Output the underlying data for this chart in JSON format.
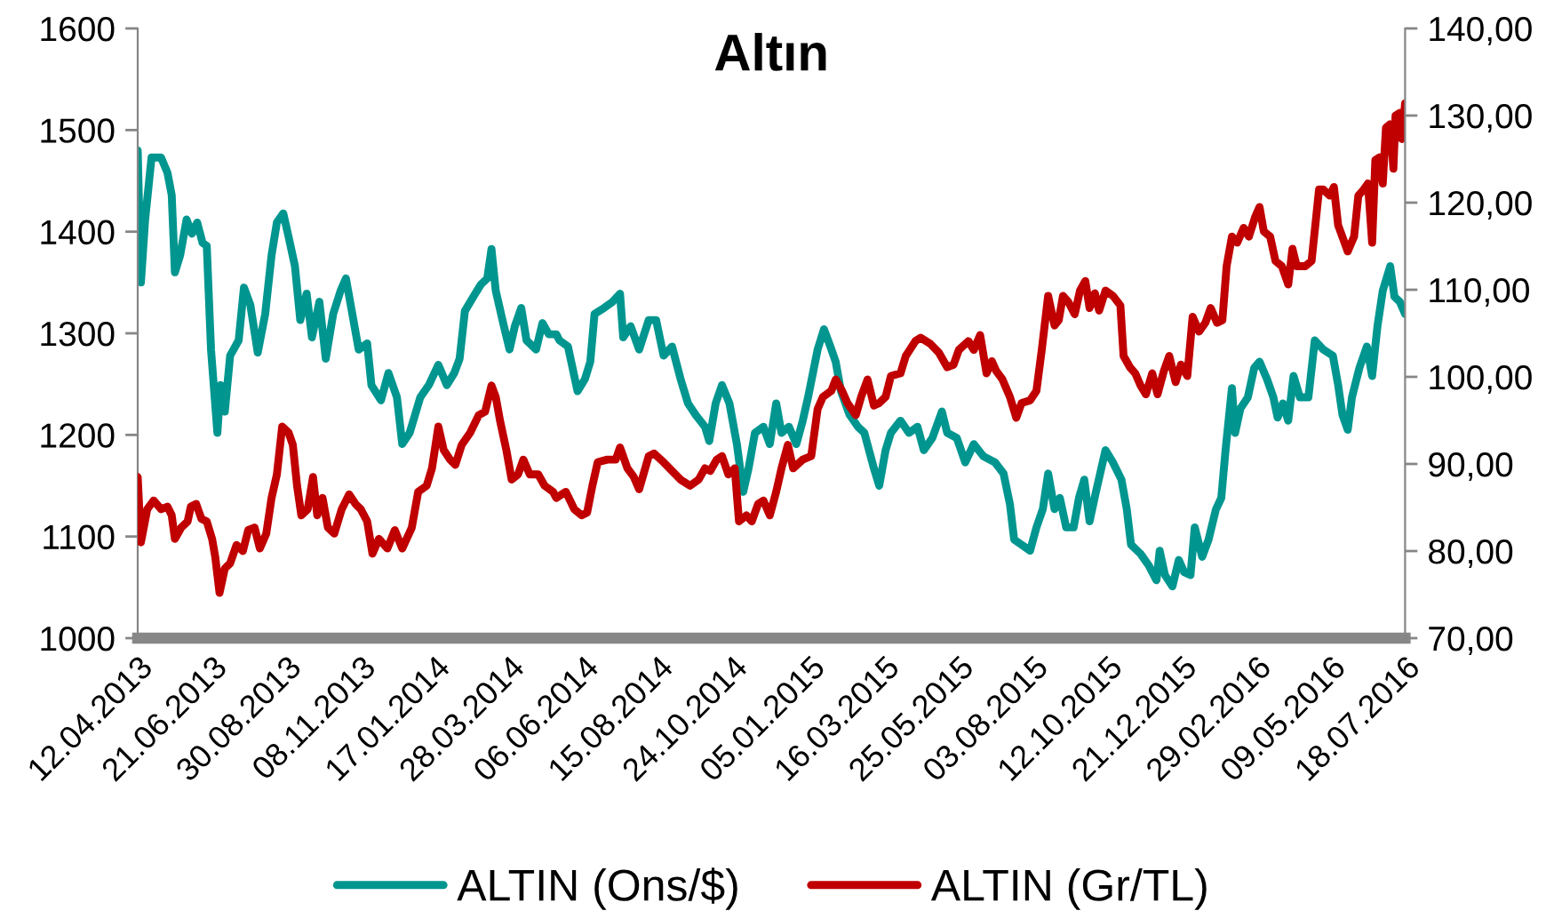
{
  "chart_data": {
    "type": "line",
    "title": "Altın",
    "grid": false,
    "legend": "bottom",
    "xlim": [
      "2013-04-12",
      "2016-07-18"
    ],
    "xticks": [
      {
        "value": "2013-04-12",
        "label": "12.04.2013"
      },
      {
        "value": "2013-06-21",
        "label": "21.06.2013"
      },
      {
        "value": "2013-08-30",
        "label": "30.08.2013"
      },
      {
        "value": "2013-11-08",
        "label": "08.11.2013"
      },
      {
        "value": "2014-01-17",
        "label": "17.01.2014"
      },
      {
        "value": "2014-03-28",
        "label": "28.03.2014"
      },
      {
        "value": "2014-06-06",
        "label": "06.06.2014"
      },
      {
        "value": "2014-08-15",
        "label": "15.08.2014"
      },
      {
        "value": "2014-10-24",
        "label": "24.10.2014"
      },
      {
        "value": "2015-01-05",
        "label": "05.01.2015"
      },
      {
        "value": "2015-03-16",
        "label": "16.03.2015"
      },
      {
        "value": "2015-05-25",
        "label": "25.05.2015"
      },
      {
        "value": "2015-08-03",
        "label": "03.08.2015"
      },
      {
        "value": "2015-10-12",
        "label": "12.10.2015"
      },
      {
        "value": "2015-12-21",
        "label": "21.12.2015"
      },
      {
        "value": "2016-02-29",
        "label": "29.02.2016"
      },
      {
        "value": "2016-05-09",
        "label": "09.05.2016"
      },
      {
        "value": "2016-07-18",
        "label": "18.07.2016"
      }
    ],
    "ylim": [
      1000,
      1600
    ],
    "yticks": [
      1000,
      1100,
      1200,
      1300,
      1400,
      1500,
      1600
    ],
    "y2lim": [
      70,
      140
    ],
    "y2ticks": [
      {
        "value": 70,
        "label": "70,00"
      },
      {
        "value": 80,
        "label": "80,00"
      },
      {
        "value": 90,
        "label": "90,00"
      },
      {
        "value": 100,
        "label": "100,00"
      },
      {
        "value": 110,
        "label": "110,00"
      },
      {
        "value": 120,
        "label": "120,00"
      },
      {
        "value": 130,
        "label": "130,00"
      },
      {
        "value": 140,
        "label": "140,00"
      }
    ],
    "series": [
      {
        "name": "ALTIN (Ons/$)",
        "color": "#00968f",
        "x": [
          "2013-04-12",
          "2013-04-15",
          "2013-04-19",
          "2013-04-25",
          "2013-05-04",
          "2013-05-10",
          "2013-05-14",
          "2013-05-17",
          "2013-05-22",
          "2013-05-28",
          "2013-06-02",
          "2013-06-07",
          "2013-06-12",
          "2013-06-16",
          "2013-06-20",
          "2013-06-26",
          "2013-06-29",
          "2013-07-03",
          "2013-07-08",
          "2013-07-16",
          "2013-07-21",
          "2013-07-27",
          "2013-08-03",
          "2013-08-10",
          "2013-08-16",
          "2013-08-21",
          "2013-08-27",
          "2013-09-01",
          "2013-09-07",
          "2013-09-12",
          "2013-09-18",
          "2013-09-23",
          "2013-09-30",
          "2013-10-06",
          "2013-10-13",
          "2013-10-20",
          "2013-10-25",
          "2013-10-31",
          "2013-11-06",
          "2013-11-14",
          "2013-11-18",
          "2013-11-27",
          "2013-12-04",
          "2013-12-12",
          "2013-12-17",
          "2013-12-24",
          "2014-01-03",
          "2014-01-11",
          "2014-01-20",
          "2014-01-28",
          "2014-02-04",
          "2014-02-09",
          "2014-02-14",
          "2014-02-22",
          "2014-03-01",
          "2014-03-07",
          "2014-03-11",
          "2014-03-15",
          "2014-03-22",
          "2014-03-28",
          "2014-04-02",
          "2014-04-08",
          "2014-04-13",
          "2014-04-22",
          "2014-04-28",
          "2014-05-04",
          "2014-05-11",
          "2014-05-14",
          "2014-05-22",
          "2014-05-31",
          "2014-06-07",
          "2014-06-12",
          "2014-06-16",
          "2014-06-25",
          "2014-07-03",
          "2014-07-10",
          "2014-07-13",
          "2014-07-20",
          "2014-07-28",
          "2014-08-06",
          "2014-08-13",
          "2014-08-20",
          "2014-08-28",
          "2014-09-05",
          "2014-09-12",
          "2014-09-19",
          "2014-09-28",
          "2014-10-02",
          "2014-10-08",
          "2014-10-14",
          "2014-10-21",
          "2014-10-28",
          "2014-11-03",
          "2014-11-08",
          "2014-11-14",
          "2014-11-22",
          "2014-11-28",
          "2014-12-04",
          "2014-12-09",
          "2014-12-16",
          "2014-12-23",
          "2014-12-29",
          "2015-01-03",
          "2015-01-12",
          "2015-01-18",
          "2015-01-24",
          "2015-01-29",
          "2015-02-03",
          "2015-02-11",
          "2015-02-19",
          "2015-02-25",
          "2015-03-06",
          "2015-03-11",
          "2015-03-17",
          "2015-03-22",
          "2015-03-31",
          "2015-04-08",
          "2015-04-16",
          "2015-04-22",
          "2015-04-30",
          "2015-05-09",
          "2015-05-14",
          "2015-05-23",
          "2015-05-31",
          "2015-06-08",
          "2015-06-17",
          "2015-06-28",
          "2015-07-06",
          "2015-07-12",
          "2015-07-16",
          "2015-07-23",
          "2015-07-31",
          "2015-08-06",
          "2015-08-12",
          "2015-08-17",
          "2015-08-23",
          "2015-08-28",
          "2015-09-03",
          "2015-09-10",
          "2015-09-15",
          "2015-09-20",
          "2015-09-25",
          "2015-10-01",
          "2015-10-10",
          "2015-10-17",
          "2015-10-25",
          "2015-10-30",
          "2015-11-03",
          "2015-11-12",
          "2015-11-20",
          "2015-11-27",
          "2015-11-30",
          "2015-12-05",
          "2015-12-12",
          "2015-12-18",
          "2015-12-23",
          "2015-12-29",
          "2016-01-02",
          "2016-01-09",
          "2016-01-15",
          "2016-01-22",
          "2016-01-27",
          "2016-01-31",
          "2016-02-06",
          "2016-02-09",
          "2016-02-14",
          "2016-02-21",
          "2016-02-27",
          "2016-03-03",
          "2016-03-10",
          "2016-03-16",
          "2016-03-20",
          "2016-03-25",
          "2016-03-30",
          "2016-04-04",
          "2016-04-10",
          "2016-04-18",
          "2016-04-24",
          "2016-05-02",
          "2016-05-11",
          "2016-05-16",
          "2016-05-20",
          "2016-05-25",
          "2016-05-29",
          "2016-06-05",
          "2016-06-12",
          "2016-06-17",
          "2016-06-22",
          "2016-06-27",
          "2016-07-04",
          "2016-07-08",
          "2016-07-13",
          "2016-07-18"
        ],
        "values": [
          1480,
          1350,
          1412,
          1473,
          1473,
          1458,
          1436,
          1360,
          1377,
          1412,
          1398,
          1409,
          1389,
          1386,
          1284,
          1202,
          1249,
          1223,
          1278,
          1293,
          1345,
          1328,
          1281,
          1319,
          1377,
          1409,
          1418,
          1395,
          1366,
          1313,
          1339,
          1296,
          1331,
          1275,
          1319,
          1342,
          1354,
          1319,
          1284,
          1290,
          1249,
          1234,
          1261,
          1237,
          1191,
          1202,
          1237,
          1249,
          1269,
          1249,
          1261,
          1275,
          1322,
          1336,
          1348,
          1354,
          1383,
          1342,
          1310,
          1284,
          1307,
          1325,
          1293,
          1284,
          1310,
          1299,
          1299,
          1293,
          1287,
          1243,
          1255,
          1272,
          1319,
          1325,
          1331,
          1339,
          1296,
          1307,
          1284,
          1313,
          1313,
          1278,
          1287,
          1255,
          1231,
          1220,
          1208,
          1194,
          1231,
          1249,
          1231,
          1191,
          1144,
          1167,
          1202,
          1208,
          1191,
          1231,
          1202,
          1208,
          1191,
          1214,
          1237,
          1284,
          1304,
          1287,
          1272,
          1243,
          1220,
          1208,
          1202,
          1167,
          1150,
          1185,
          1202,
          1214,
          1202,
          1208,
          1185,
          1197,
          1223,
          1202,
          1197,
          1173,
          1191,
          1179,
          1173,
          1162,
          1132,
          1097,
          1092,
          1086,
          1109,
          1127,
          1162,
          1127,
          1138,
          1109,
          1109,
          1138,
          1156,
          1115,
          1144,
          1185,
          1173,
          1156,
          1127,
          1092,
          1083,
          1071,
          1057,
          1086,
          1062,
          1051,
          1077,
          1065,
          1062,
          1109,
          1080,
          1097,
          1127,
          1138,
          1185,
          1246,
          1202,
          1226,
          1237,
          1266,
          1272,
          1255,
          1237,
          1217,
          1231,
          1214,
          1258,
          1237,
          1237,
          1293,
          1284,
          1278,
          1249,
          1220,
          1205,
          1237,
          1266,
          1287,
          1258,
          1307,
          1342,
          1366,
          1336,
          1331,
          1319
        ]
      },
      {
        "name": "ALTIN (Gr/TL)",
        "color": "#c00000",
        "axis": "y2",
        "x": [
          "2013-04-12",
          "2013-04-15",
          "2013-04-21",
          "2013-04-27",
          "2013-05-04",
          "2013-05-10",
          "2013-05-14",
          "2013-05-17",
          "2013-05-23",
          "2013-05-29",
          "2013-06-01",
          "2013-06-06",
          "2013-06-11",
          "2013-06-16",
          "2013-06-21",
          "2013-06-24",
          "2013-06-28",
          "2013-07-03",
          "2013-07-08",
          "2013-07-14",
          "2013-07-20",
          "2013-07-25",
          "2013-07-31",
          "2013-08-05",
          "2013-08-11",
          "2013-08-16",
          "2013-08-21",
          "2013-08-26",
          "2013-09-01",
          "2013-09-05",
          "2013-09-09",
          "2013-09-13",
          "2013-09-19",
          "2013-09-24",
          "2013-09-28",
          "2013-10-03",
          "2013-10-08",
          "2013-10-14",
          "2013-10-21",
          "2013-10-28",
          "2013-11-03",
          "2013-11-08",
          "2013-11-14",
          "2013-11-19",
          "2013-11-25",
          "2013-12-03",
          "2013-12-10",
          "2013-12-17",
          "2013-12-26",
          "2014-01-01",
          "2014-01-09",
          "2014-01-14",
          "2014-01-20",
          "2014-01-25",
          "2014-01-31",
          "2014-02-05",
          "2014-02-11",
          "2014-02-19",
          "2014-02-27",
          "2014-03-05",
          "2014-03-11",
          "2014-03-15",
          "2014-03-19",
          "2014-03-25",
          "2014-03-30",
          "2014-04-05",
          "2014-04-10",
          "2014-04-16",
          "2014-04-24",
          "2014-04-30",
          "2014-05-08",
          "2014-05-11",
          "2014-05-20",
          "2014-05-28",
          "2014-06-04",
          "2014-06-09",
          "2014-06-14",
          "2014-06-19",
          "2014-06-28",
          "2014-07-06",
          "2014-07-10",
          "2014-07-17",
          "2014-07-23",
          "2014-07-28",
          "2014-08-06",
          "2014-08-11",
          "2014-08-20",
          "2014-08-28",
          "2014-09-05",
          "2014-09-14",
          "2014-09-22",
          "2014-09-28",
          "2014-10-03",
          "2014-10-09",
          "2014-10-14",
          "2014-10-20",
          "2014-10-26",
          "2014-10-30",
          "2014-11-06",
          "2014-11-11",
          "2014-11-17",
          "2014-11-22",
          "2014-11-28",
          "2014-12-04",
          "2014-12-09",
          "2014-12-15",
          "2014-12-20",
          "2014-12-29",
          "2015-01-06",
          "2015-01-12",
          "2015-01-17",
          "2015-01-25",
          "2015-01-29",
          "2015-02-04",
          "2015-02-09",
          "2015-02-17",
          "2015-02-22",
          "2015-02-28",
          "2015-03-06",
          "2015-03-11",
          "2015-03-17",
          "2015-03-22",
          "2015-03-31",
          "2015-04-05",
          "2015-04-14",
          "2015-04-19",
          "2015-04-28",
          "2015-05-06",
          "2015-05-14",
          "2015-05-20",
          "2015-05-25",
          "2015-06-03",
          "2015-06-08",
          "2015-06-14",
          "2015-06-20",
          "2015-06-25",
          "2015-06-29",
          "2015-07-05",
          "2015-07-12",
          "2015-07-18",
          "2015-07-23",
          "2015-07-31",
          "2015-08-06",
          "2015-08-11",
          "2015-08-17",
          "2015-08-23",
          "2015-08-27",
          "2015-08-31",
          "2015-09-05",
          "2015-09-11",
          "2015-09-16",
          "2015-09-21",
          "2015-09-25",
          "2015-09-30",
          "2015-10-04",
          "2015-10-10",
          "2015-10-17",
          "2015-10-24",
          "2015-10-27",
          "2015-11-02",
          "2015-11-07",
          "2015-11-12",
          "2015-11-17",
          "2015-11-23",
          "2015-11-28",
          "2015-12-04",
          "2015-12-09",
          "2015-12-15",
          "2015-12-20",
          "2015-12-26",
          "2015-12-31",
          "2016-01-06",
          "2016-01-12",
          "2016-01-17",
          "2016-01-23",
          "2016-01-28",
          "2016-02-01",
          "2016-02-06",
          "2016-02-11",
          "2016-02-17",
          "2016-02-22",
          "2016-02-28",
          "2016-03-03",
          "2016-03-07",
          "2016-03-13",
          "2016-03-18",
          "2016-03-24",
          "2016-03-30",
          "2016-04-03",
          "2016-04-07",
          "2016-04-15",
          "2016-04-21",
          "2016-04-28",
          "2016-05-02",
          "2016-05-08",
          "2016-05-12",
          "2016-05-16",
          "2016-05-22",
          "2016-05-25",
          "2016-05-31",
          "2016-06-04",
          "2016-06-09",
          "2016-06-13",
          "2016-06-17",
          "2016-06-20",
          "2016-06-24",
          "2016-06-27",
          "2016-06-30",
          "2016-07-04",
          "2016-07-07",
          "2016-07-09",
          "2016-07-13",
          "2016-07-15",
          "2016-07-18"
        ],
        "values": [
          88.5,
          81.0,
          84.8,
          85.8,
          84.8,
          85.1,
          84.1,
          81.4,
          82.7,
          83.4,
          85.1,
          85.4,
          83.7,
          83.4,
          81.4,
          79.3,
          75.2,
          78.0,
          78.6,
          80.7,
          80.0,
          82.4,
          82.7,
          80.3,
          82.0,
          86.1,
          88.8,
          94.3,
          93.6,
          92.2,
          87.5,
          84.1,
          84.8,
          88.5,
          84.1,
          86.1,
          82.7,
          82.0,
          84.8,
          86.5,
          85.4,
          84.8,
          83.4,
          79.7,
          81.4,
          80.3,
          82.4,
          80.3,
          82.7,
          86.8,
          87.5,
          89.5,
          94.3,
          91.6,
          90.5,
          89.9,
          92.2,
          93.6,
          95.6,
          96.0,
          99.0,
          97.7,
          95.0,
          91.6,
          88.2,
          88.8,
          90.5,
          88.8,
          88.8,
          87.5,
          86.8,
          86.1,
          86.8,
          84.8,
          84.1,
          84.4,
          87.5,
          90.2,
          90.5,
          90.5,
          91.9,
          89.5,
          88.5,
          87.1,
          90.9,
          91.2,
          90.2,
          89.2,
          88.2,
          87.5,
          88.2,
          89.5,
          89.2,
          90.5,
          90.9,
          88.8,
          89.5,
          83.4,
          84.1,
          83.4,
          85.4,
          85.8,
          84.1,
          86.8,
          89.5,
          92.2,
          89.5,
          90.5,
          90.9,
          96.3,
          97.7,
          98.4,
          99.7,
          98.4,
          97.0,
          95.6,
          97.7,
          99.7,
          96.7,
          97.0,
          97.7,
          100.1,
          100.4,
          102.4,
          104.1,
          104.5,
          103.8,
          102.8,
          101.1,
          101.4,
          103.1,
          104.1,
          103.1,
          104.8,
          100.4,
          101.8,
          100.7,
          99.7,
          97.7,
          95.3,
          97.0,
          97.3,
          98.4,
          103.1,
          109.3,
          105.9,
          106.5,
          109.3,
          108.6,
          107.2,
          109.9,
          111.0,
          107.9,
          109.6,
          107.6,
          109.9,
          109.3,
          108.2,
          102.4,
          101.1,
          100.4,
          99.0,
          98.0,
          100.4,
          98.0,
          100.7,
          102.4,
          99.4,
          101.4,
          100.1,
          106.9,
          105.2,
          106.2,
          107.9,
          106.2,
          106.5,
          112.7,
          116.1,
          115.4,
          117.1,
          116.1,
          118.4,
          119.5,
          116.7,
          116.1,
          113.3,
          112.7,
          110.6,
          114.7,
          112.7,
          112.7,
          113.3,
          121.5,
          121.5,
          120.8,
          121.8,
          117.4,
          115.4,
          114.4,
          116.1,
          120.8,
          121.5,
          122.2,
          115.4,
          124.9,
          125.2,
          122.2,
          128.6,
          129.0,
          123.9,
          130.0,
          130.3,
          127.3,
          131.4
        ]
      }
    ]
  }
}
